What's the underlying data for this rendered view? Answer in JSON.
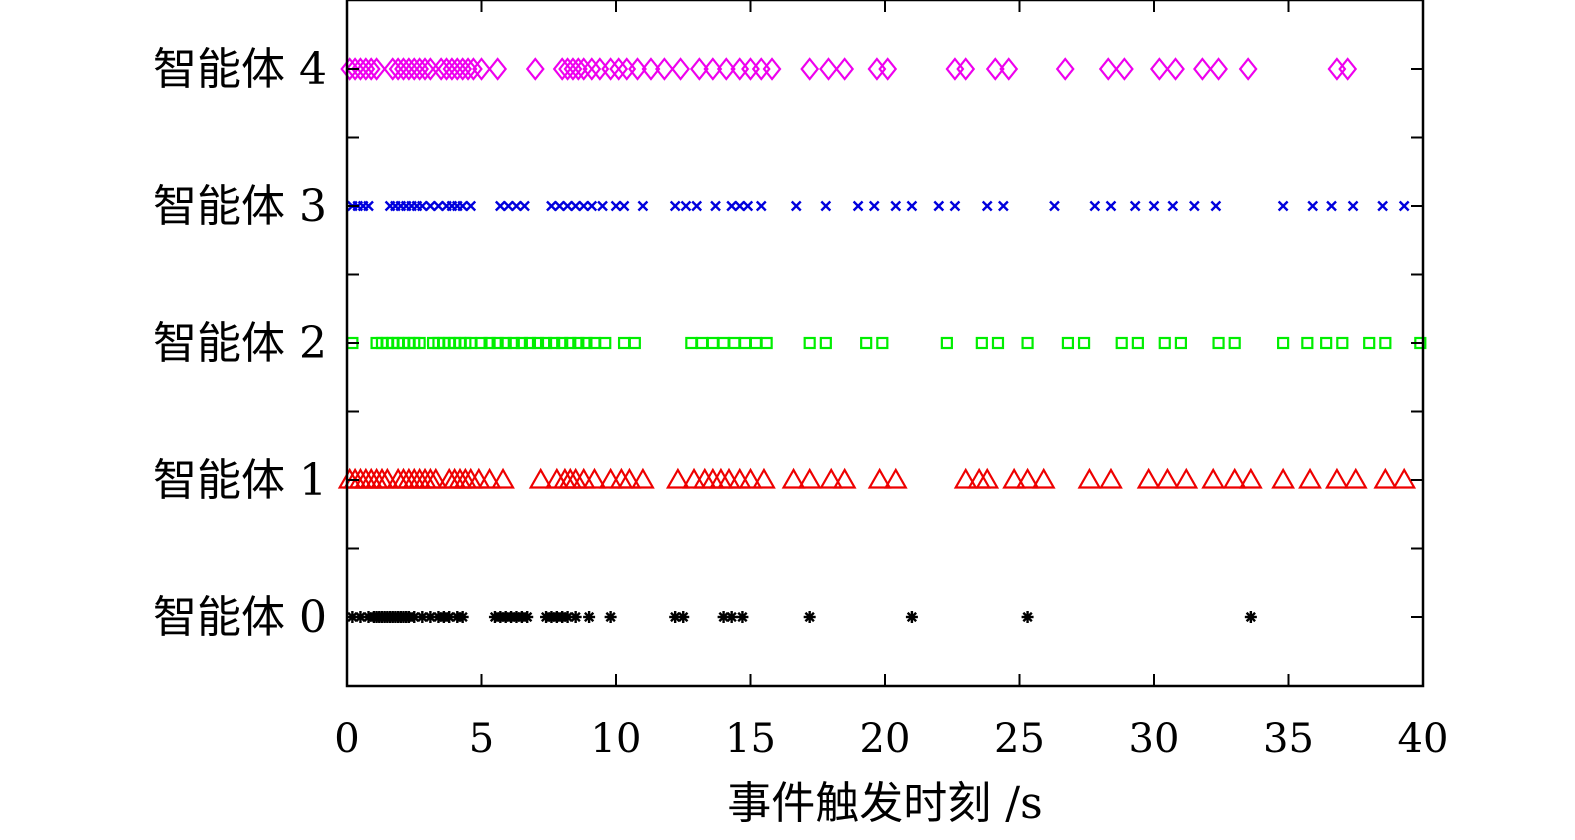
{
  "chart_data": {
    "type": "scatter",
    "xlabel": "事件触发时刻 /s",
    "xlim": [
      0,
      40
    ],
    "x_ticks": [
      "0",
      "5",
      "10",
      "15",
      "20",
      "25",
      "30",
      "35",
      "40"
    ],
    "y_categories": [
      "智能体 0",
      "智能体 1",
      "智能体 2",
      "智能体 3",
      "智能体 4"
    ],
    "series": [
      {
        "name": "智能体 0",
        "marker": "asterisk",
        "color": "#000000",
        "x": [
          0.2,
          0.5,
          0.8,
          1.0,
          1.1,
          1.2,
          1.3,
          1.4,
          1.5,
          1.6,
          1.7,
          1.8,
          1.9,
          2.0,
          2.1,
          2.2,
          2.3,
          2.5,
          2.8,
          3.1,
          3.4,
          3.6,
          3.8,
          4.1,
          4.3,
          5.5,
          5.7,
          5.9,
          6.1,
          6.3,
          6.5,
          6.7,
          7.4,
          7.6,
          7.8,
          8.0,
          8.2,
          8.5,
          9.0,
          9.8,
          12.2,
          12.5,
          14.0,
          14.3,
          14.7,
          17.2,
          21.0,
          25.3,
          33.6
        ]
      },
      {
        "name": "智能体 1",
        "marker": "triangle",
        "color": "#ee0000",
        "x": [
          0.1,
          0.3,
          0.5,
          0.7,
          0.9,
          1.1,
          1.3,
          1.5,
          1.9,
          2.1,
          2.3,
          2.5,
          2.7,
          2.9,
          3.1,
          3.3,
          3.8,
          4.0,
          4.2,
          4.4,
          4.6,
          4.9,
          5.3,
          5.8,
          7.2,
          7.8,
          8.1,
          8.3,
          8.5,
          8.8,
          9.2,
          9.8,
          10.2,
          10.5,
          11.0,
          12.3,
          12.9,
          13.3,
          13.6,
          13.9,
          14.2,
          14.6,
          15.0,
          15.5,
          16.6,
          17.2,
          18.0,
          18.5,
          19.8,
          20.4,
          23.0,
          23.5,
          23.8,
          24.8,
          25.3,
          25.9,
          27.6,
          28.4,
          29.8,
          30.5,
          31.2,
          32.2,
          33.0,
          33.6,
          34.8,
          35.8,
          36.8,
          37.5,
          38.6,
          39.3
        ]
      },
      {
        "name": "智能体 2",
        "marker": "square",
        "color": "#00ee00",
        "x": [
          0.2,
          1.1,
          1.3,
          1.5,
          1.7,
          1.9,
          2.1,
          2.3,
          2.5,
          2.7,
          3.2,
          3.4,
          3.6,
          3.8,
          4.0,
          4.2,
          4.4,
          4.6,
          5.0,
          5.3,
          5.6,
          5.9,
          6.2,
          6.5,
          6.8,
          7.1,
          7.4,
          7.7,
          8.0,
          8.3,
          8.6,
          8.9,
          9.2,
          9.6,
          10.3,
          10.7,
          12.8,
          13.2,
          13.6,
          14.0,
          14.4,
          14.8,
          15.2,
          15.6,
          17.2,
          17.8,
          19.3,
          19.9,
          22.3,
          23.6,
          24.2,
          25.3,
          26.8,
          27.4,
          28.8,
          29.4,
          30.4,
          31.0,
          32.4,
          33.0,
          34.8,
          35.7,
          36.4,
          37.0,
          38.0,
          38.6,
          39.9
        ]
      },
      {
        "name": "智能体 3",
        "marker": "cross",
        "color": "#0000dd",
        "x": [
          0.2,
          0.4,
          0.6,
          0.8,
          1.6,
          1.8,
          2.0,
          2.2,
          2.4,
          2.6,
          2.8,
          3.1,
          3.4,
          3.7,
          3.9,
          4.1,
          4.3,
          4.6,
          5.7,
          6.0,
          6.3,
          6.6,
          7.6,
          7.9,
          8.2,
          8.5,
          8.8,
          9.1,
          9.5,
          10.0,
          10.3,
          11.0,
          12.2,
          12.6,
          13.0,
          13.7,
          14.3,
          14.6,
          14.9,
          15.4,
          16.7,
          17.8,
          19.0,
          19.6,
          20.4,
          21.0,
          22.0,
          22.6,
          23.8,
          24.4,
          26.3,
          27.8,
          28.4,
          29.3,
          30.0,
          30.7,
          31.5,
          32.3,
          34.8,
          35.9,
          36.6,
          37.4,
          38.5,
          39.3
        ]
      },
      {
        "name": "智能体 4",
        "marker": "diamond",
        "color": "#ee00ee",
        "x": [
          0.1,
          0.3,
          0.5,
          0.7,
          0.9,
          1.1,
          1.7,
          1.9,
          2.1,
          2.3,
          2.5,
          2.7,
          2.9,
          3.1,
          3.5,
          3.7,
          3.9,
          4.1,
          4.3,
          4.5,
          4.7,
          5.0,
          5.6,
          7.0,
          8.0,
          8.2,
          8.4,
          8.6,
          8.8,
          9.1,
          9.4,
          9.8,
          10.1,
          10.4,
          10.8,
          11.3,
          11.8,
          12.4,
          13.1,
          13.6,
          14.1,
          14.6,
          15.0,
          15.4,
          15.8,
          17.2,
          17.9,
          18.5,
          19.7,
          20.1,
          22.6,
          23.0,
          24.1,
          24.6,
          26.7,
          28.3,
          28.9,
          30.2,
          30.8,
          31.8,
          32.4,
          33.5,
          36.8,
          37.2
        ]
      }
    ]
  }
}
